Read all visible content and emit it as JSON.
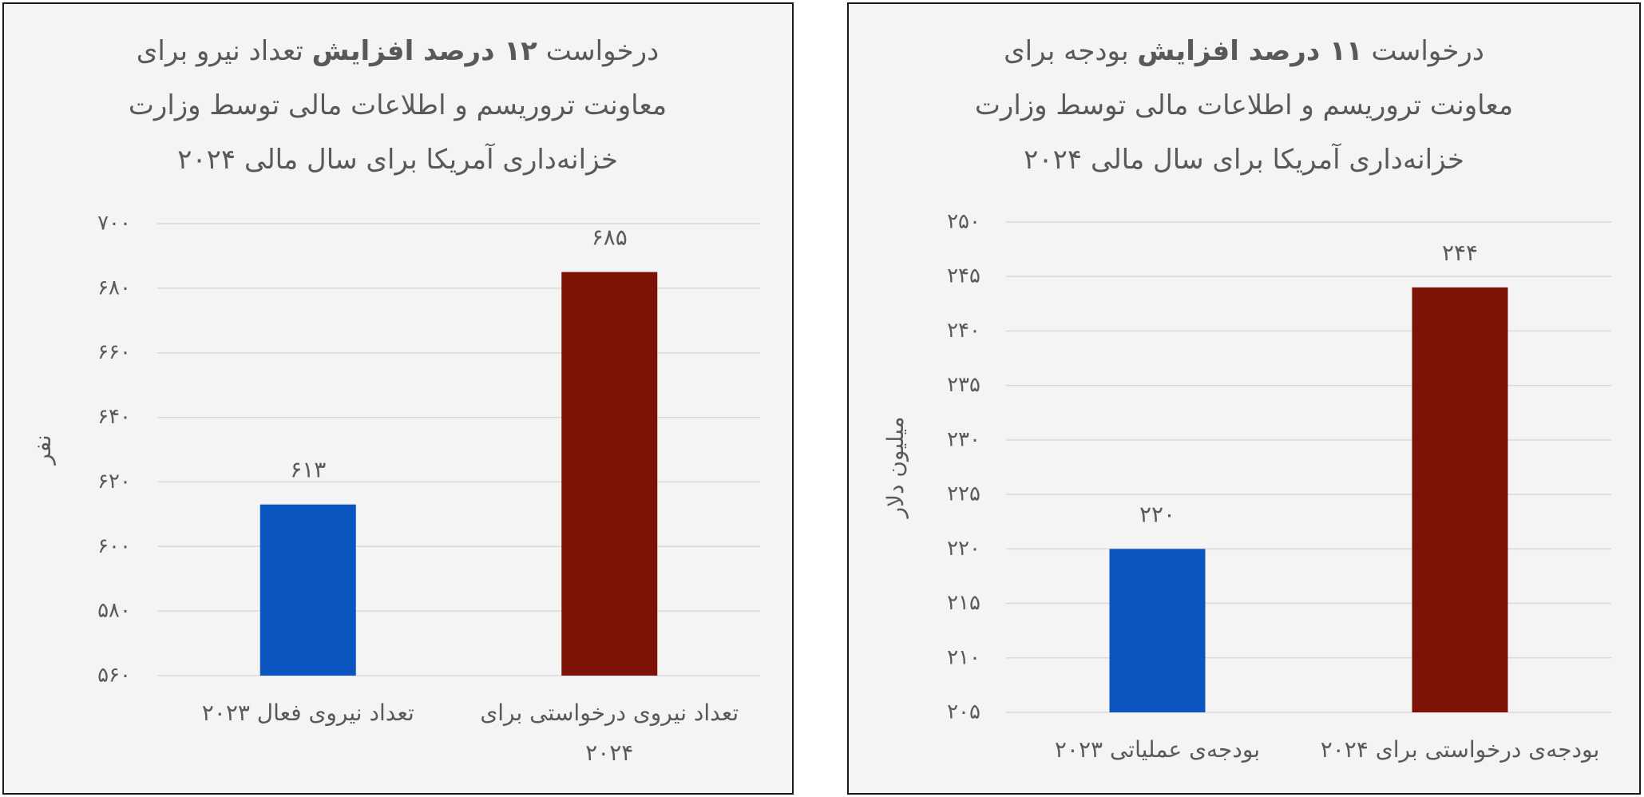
{
  "chart_data": [
    {
      "type": "bar",
      "title_lines": [
        [
          "درخواست ",
          "۱۲ درصد افزایش",
          " تعداد نیرو برای"
        ],
        [
          "معاونت تروریسم و اطلاعات مالی توسط وزارت"
        ],
        [
          "خزانه‌داری آمریکا برای سال مالی ۲۰۲۴"
        ]
      ],
      "ylabel": "نفر",
      "categories": [
        "تعداد نیروی فعال ۲۰۲۳",
        "تعداد نیروی درخواستی برای ۲۰۲۴"
      ],
      "values": [
        613,
        685
      ],
      "value_labels": [
        "۶۱۳",
        "۶۸۵"
      ],
      "colors": [
        "#0b55c0",
        "#7f1206"
      ],
      "ylim": [
        560,
        700
      ],
      "yticks": [
        {
          "value": 560,
          "label": "۵۶۰"
        },
        {
          "value": 580,
          "label": "۵۸۰"
        },
        {
          "value": 600,
          "label": "۶۰۰"
        },
        {
          "value": 620,
          "label": "۶۲۰"
        },
        {
          "value": 640,
          "label": "۶۴۰"
        },
        {
          "value": 660,
          "label": "۶۶۰"
        },
        {
          "value": 680,
          "label": "۶۸۰"
        },
        {
          "value": 700,
          "label": "۷۰۰"
        }
      ],
      "grid": true
    },
    {
      "type": "bar",
      "title_lines": [
        [
          "درخواست ",
          "۱۱ درصد افزایش",
          " بودجه برای"
        ],
        [
          "معاونت تروریسم و اطلاعات مالی توسط وزارت"
        ],
        [
          "خزانه‌داری آمریکا برای سال مالی ۲۰۲۴"
        ]
      ],
      "ylabel": "میلیون دلار",
      "categories": [
        "بودجه‌ی عملیاتی ۲۰۲۳",
        "بودجه‌ی درخواستی برای ۲۰۲۴"
      ],
      "values": [
        220,
        244
      ],
      "value_labels": [
        "۲۲۰",
        "۲۴۴"
      ],
      "colors": [
        "#0b55c0",
        "#7f1206"
      ],
      "ylim": [
        205,
        250
      ],
      "yticks": [
        {
          "value": 205,
          "label": "۲۰۵"
        },
        {
          "value": 210,
          "label": "۲۱۰"
        },
        {
          "value": 215,
          "label": "۲۱۵"
        },
        {
          "value": 220,
          "label": "۲۲۰"
        },
        {
          "value": 225,
          "label": "۲۲۵"
        },
        {
          "value": 230,
          "label": "۲۳۰"
        },
        {
          "value": 235,
          "label": "۲۳۵"
        },
        {
          "value": 240,
          "label": "۲۴۰"
        },
        {
          "value": 245,
          "label": "۲۴۵"
        },
        {
          "value": 250,
          "label": "۲۵۰"
        }
      ],
      "grid": true
    }
  ]
}
